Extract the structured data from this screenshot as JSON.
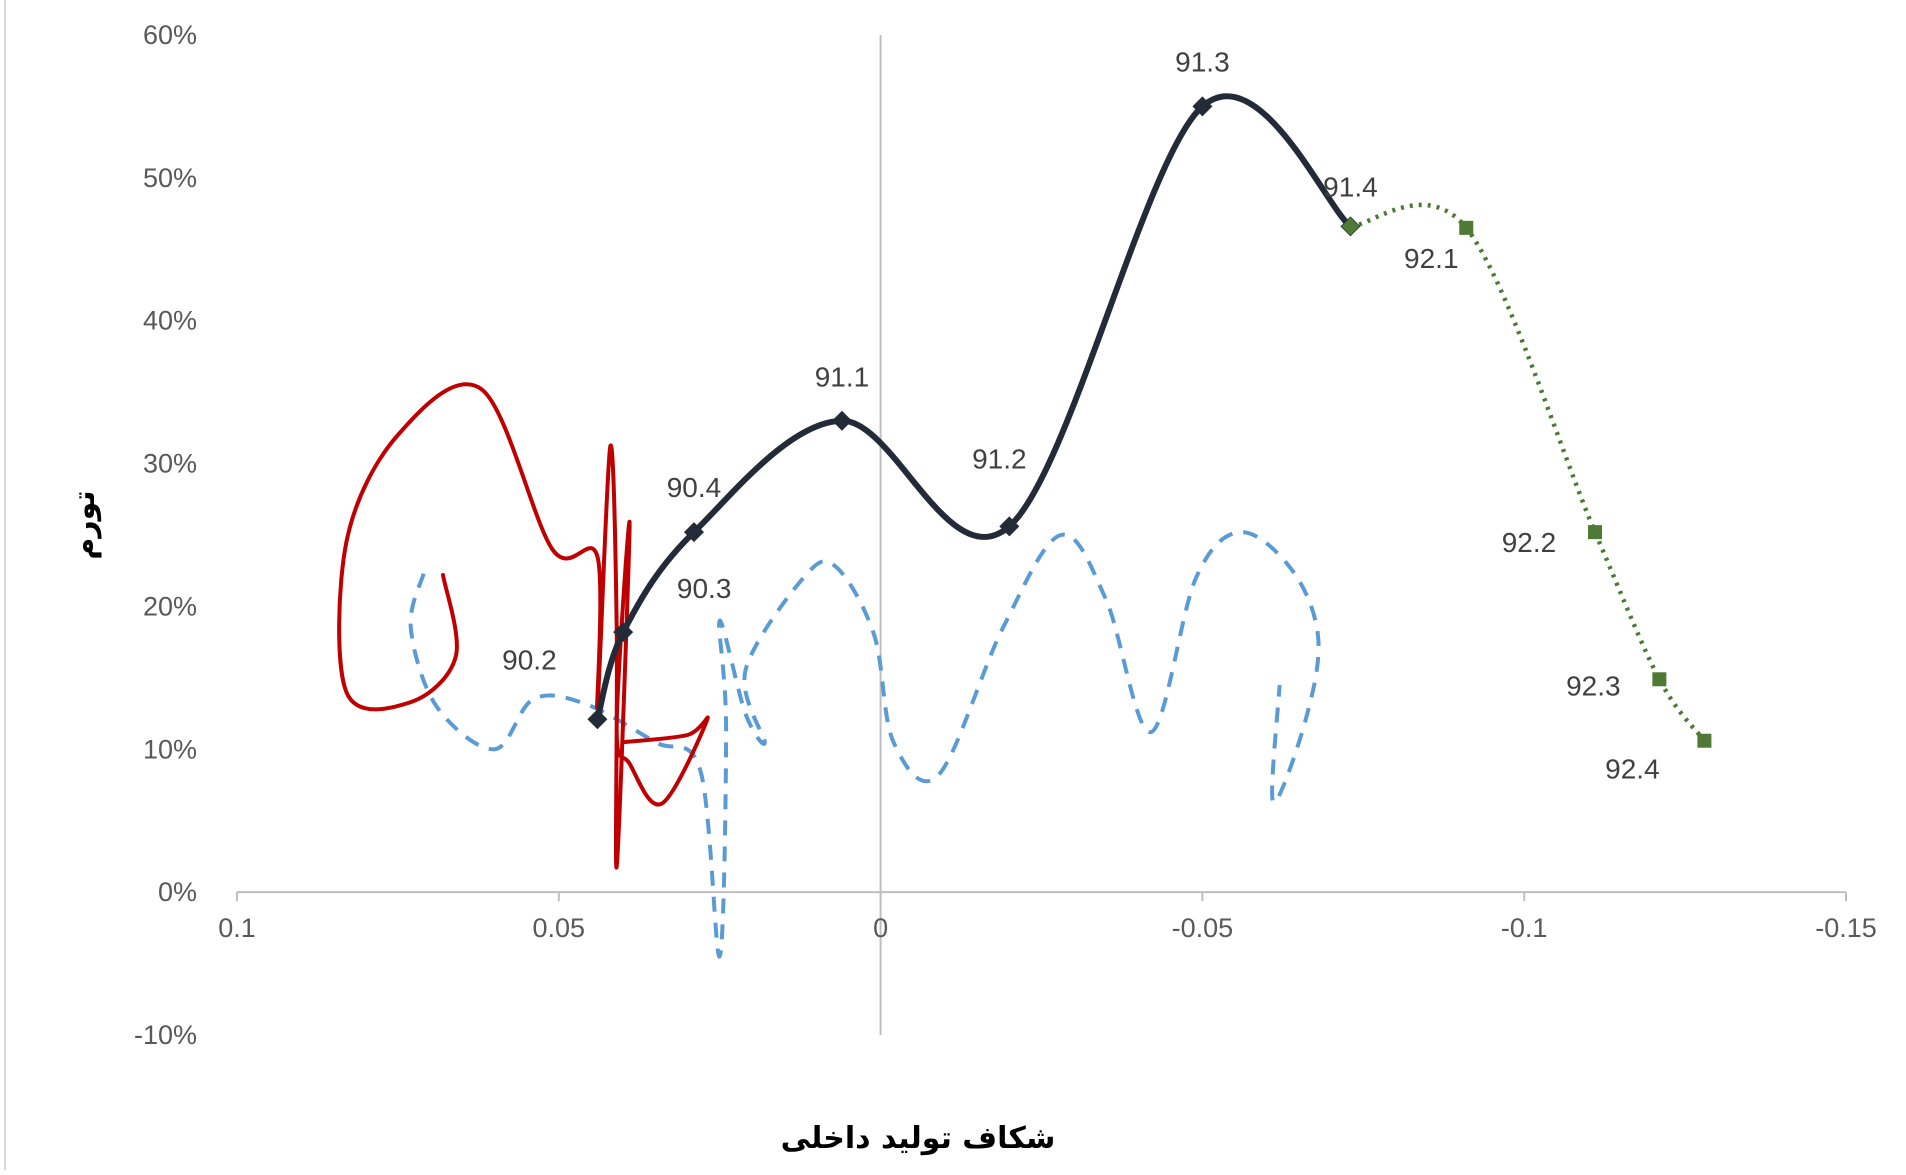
{
  "chart_data": {
    "type": "line",
    "title": "",
    "xlabel": "شکاف تولید داخلی",
    "ylabel": "تورم",
    "x_reversed": true,
    "xlim": [
      0.1,
      -0.15
    ],
    "ylim": [
      -0.1,
      0.6
    ],
    "x_ticks": [
      "0.1",
      "0.05",
      "0",
      "-0.05",
      "-0.1",
      "-0.15"
    ],
    "y_ticks": [
      "60%",
      "50%",
      "40%",
      "30%",
      "20%",
      "10%",
      "0%",
      "-10%"
    ],
    "grid": false,
    "legend": "none",
    "series": [
      {
        "style": "solid-thick",
        "color": "#232b38",
        "marker": "diamond",
        "points": [
          {
            "x": 0.044,
            "y": 0.121,
            "label": "90.2"
          },
          {
            "x": 0.04,
            "y": 0.182,
            "label": "90.3"
          },
          {
            "x": 0.029,
            "y": 0.252,
            "label": "90.4"
          },
          {
            "x": 0.006,
            "y": 0.33,
            "label": "91.1"
          },
          {
            "x": -0.02,
            "y": 0.256,
            "label": "91.2"
          },
          {
            "x": -0.05,
            "y": 0.55,
            "label": "91.3"
          },
          {
            "x": -0.073,
            "y": 0.466,
            "label": "91.4"
          }
        ]
      },
      {
        "style": "dotted",
        "color": "#4f7a36",
        "marker": "square",
        "points": [
          {
            "x": -0.073,
            "y": 0.466,
            "label": ""
          },
          {
            "x": -0.091,
            "y": 0.465,
            "label": "92.1"
          },
          {
            "x": -0.111,
            "y": 0.252,
            "label": "92.2"
          },
          {
            "x": -0.121,
            "y": 0.149,
            "label": "92.3"
          },
          {
            "x": -0.128,
            "y": 0.106,
            "label": "92.4"
          }
        ]
      },
      {
        "style": "dashed",
        "color": "#5b9bd5",
        "marker": "none",
        "points": [
          {
            "x": 0.071,
            "y": 0.223
          },
          {
            "x": 0.073,
            "y": 0.185
          },
          {
            "x": 0.069,
            "y": 0.13
          },
          {
            "x": 0.06,
            "y": 0.1
          },
          {
            "x": 0.054,
            "y": 0.135
          },
          {
            "x": 0.046,
            "y": 0.132
          },
          {
            "x": 0.035,
            "y": 0.105
          },
          {
            "x": 0.028,
            "y": 0.085
          },
          {
            "x": 0.025,
            "y": -0.045
          },
          {
            "x": 0.024,
            "y": 0.115
          },
          {
            "x": 0.025,
            "y": 0.19
          },
          {
            "x": 0.021,
            "y": 0.125
          },
          {
            "x": 0.018,
            "y": 0.105
          },
          {
            "x": 0.021,
            "y": 0.155
          },
          {
            "x": 0.012,
            "y": 0.22
          },
          {
            "x": 0.007,
            "y": 0.228
          },
          {
            "x": 0.001,
            "y": 0.18
          },
          {
            "x": -0.002,
            "y": 0.105
          },
          {
            "x": -0.009,
            "y": 0.082
          },
          {
            "x": -0.019,
            "y": 0.185
          },
          {
            "x": -0.028,
            "y": 0.25
          },
          {
            "x": -0.035,
            "y": 0.205
          },
          {
            "x": -0.042,
            "y": 0.112
          },
          {
            "x": -0.049,
            "y": 0.22
          },
          {
            "x": -0.056,
            "y": 0.252
          },
          {
            "x": -0.064,
            "y": 0.225
          },
          {
            "x": -0.068,
            "y": 0.178
          },
          {
            "x": -0.066,
            "y": 0.12
          },
          {
            "x": -0.061,
            "y": 0.063
          },
          {
            "x": -0.062,
            "y": 0.145
          }
        ]
      },
      {
        "style": "solid",
        "color": "#c00000",
        "marker": "none",
        "points": [
          {
            "x": 0.068,
            "y": 0.222
          },
          {
            "x": 0.066,
            "y": 0.165
          },
          {
            "x": 0.073,
            "y": 0.133
          },
          {
            "x": 0.083,
            "y": 0.14
          },
          {
            "x": 0.083,
            "y": 0.245
          },
          {
            "x": 0.075,
            "y": 0.32
          },
          {
            "x": 0.062,
            "y": 0.352
          },
          {
            "x": 0.051,
            "y": 0.24
          },
          {
            "x": 0.044,
            "y": 0.235
          },
          {
            "x": 0.044,
            "y": 0.13
          },
          {
            "x": 0.042,
            "y": 0.312
          },
          {
            "x": 0.041,
            "y": 0.185
          },
          {
            "x": 0.041,
            "y": 0.018
          },
          {
            "x": 0.039,
            "y": 0.258
          },
          {
            "x": 0.041,
            "y": 0.115
          },
          {
            "x": 0.039,
            "y": 0.09
          },
          {
            "x": 0.034,
            "y": 0.062
          },
          {
            "x": 0.027,
            "y": 0.12
          },
          {
            "x": 0.03,
            "y": 0.11
          },
          {
            "x": 0.04,
            "y": 0.105
          }
        ]
      }
    ]
  }
}
